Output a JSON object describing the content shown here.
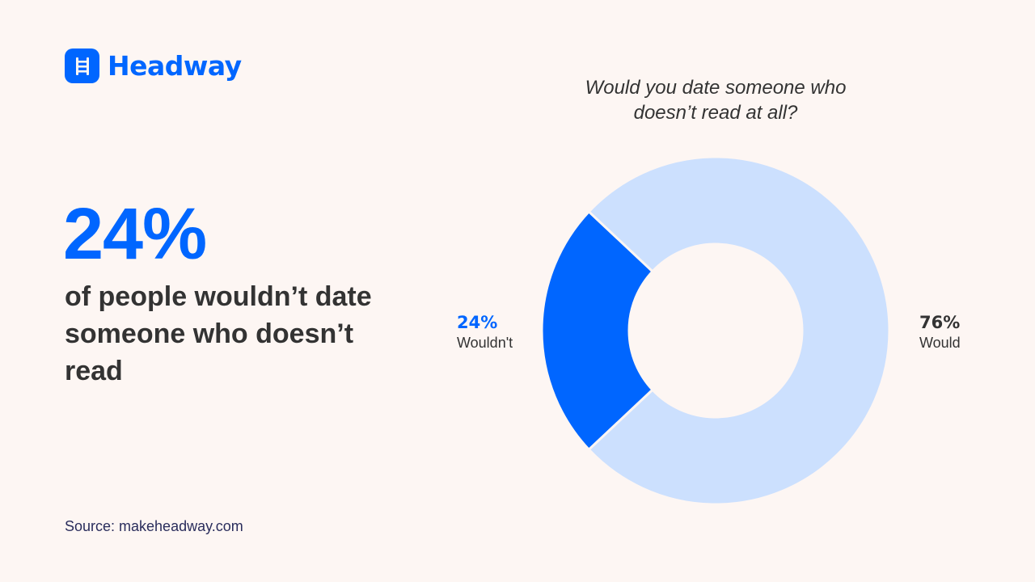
{
  "brand": {
    "name": "Headway",
    "icon": "ladder-icon",
    "color": "#0066FF"
  },
  "headline": {
    "stat": "24%",
    "description": "of people wouldn’t date someone who doesn’t read"
  },
  "source": "Source: makeheadway.com",
  "colors": {
    "background": "#FDF6F3",
    "primary": "#0066FF",
    "secondary": "#CCE0FE",
    "text": "#333333",
    "source_text": "#2A2D5C"
  },
  "labels": {
    "wouldnt": {
      "pct": "24%",
      "name": "Wouldn't"
    },
    "would": {
      "pct": "76%",
      "name": "Would"
    }
  },
  "chart_data": {
    "type": "pie",
    "variant": "donut",
    "title": "Would you date someone who doesn’t read at all?",
    "categories": [
      "Wouldn't",
      "Would"
    ],
    "values": [
      24,
      76
    ],
    "unit": "%",
    "colors": [
      "#0066FF",
      "#CCE0FE"
    ],
    "legend_position": "inline labels left/right"
  }
}
